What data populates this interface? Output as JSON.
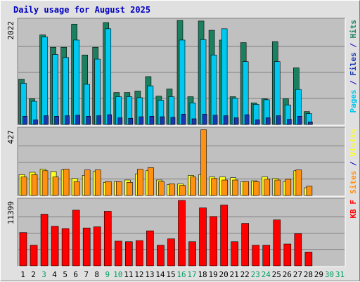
{
  "chart_data": {
    "type": "bar",
    "title": "Daily usage for August 2025",
    "categories": [
      "1",
      "2",
      "3",
      "4",
      "5",
      "6",
      "7",
      "8",
      "9",
      "10",
      "11",
      "12",
      "13",
      "14",
      "15",
      "16",
      "17",
      "18",
      "19",
      "20",
      "21",
      "22",
      "23",
      "24",
      "25",
      "26",
      "27",
      "28",
      "29",
      "30",
      "31"
    ],
    "weekend_days": [
      "3",
      "9",
      "10",
      "16",
      "17",
      "23",
      "24",
      "30",
      "31"
    ],
    "colors": {
      "weekday_label": "#000000",
      "weekend_label": "#00a060",
      "hits": "#1a8060",
      "files": "#00c8f0",
      "pages": "#1838b0",
      "visits": "#ffff20",
      "sites": "#ff9010",
      "kbytes": "#ff0000",
      "title": "#0000c0",
      "plot_bg": "#c0c0c0",
      "grid": "#808080"
    },
    "panels": [
      {
        "name": "hits-files-pages",
        "ymax_label": "2022",
        "ylim": [
          0,
          2022
        ],
        "side_label": [
          "Pages",
          " / ",
          "Files",
          " / ",
          "Hits"
        ],
        "side_colors": [
          "#00c8f0",
          "#0000c0",
          "#1838b0",
          "#0000c0",
          "#1a8060"
        ],
        "series": [
          {
            "name": "Hits",
            "values": [
              880,
              500,
              1740,
              1500,
              1500,
              1950,
              1350,
              1500,
              1980,
              620,
              620,
              650,
              930,
              550,
              690,
              2022,
              540,
              2010,
              1830,
              1640,
              540,
              1590,
              420,
              500,
              1610,
              500,
              1100,
              250,
              0,
              0,
              0
            ]
          },
          {
            "name": "Files",
            "values": [
              800,
              450,
              1700,
              1360,
              1300,
              1640,
              780,
              1270,
              1860,
              540,
              540,
              520,
              750,
              470,
              540,
              1640,
              420,
              1650,
              1350,
              1860,
              510,
              1220,
              390,
              480,
              1220,
              380,
              680,
              210,
              0,
              0,
              0
            ]
          },
          {
            "name": "Pages",
            "values": [
              160,
              90,
              170,
              160,
              170,
              180,
              160,
              170,
              190,
              130,
              120,
              150,
              160,
              150,
              140,
              200,
              110,
              200,
              180,
              170,
              130,
              190,
              90,
              130,
              170,
              100,
              160,
              50,
              0,
              0,
              0
            ]
          }
        ]
      },
      {
        "name": "visits-sites",
        "ymax_label": "427",
        "ylim": [
          0,
          427
        ],
        "side_label": [
          "Sites",
          " / ",
          "Visits"
        ],
        "side_colors": [
          "#ff9010",
          "#0000c0",
          "#ffff20"
        ],
        "series": [
          {
            "name": "Visits",
            "values": [
              135,
              150,
              170,
              155,
              165,
              110,
              130,
              155,
              85,
              90,
              100,
              140,
              160,
              100,
              70,
              75,
              130,
              135,
              120,
              120,
              115,
              90,
              95,
              120,
              110,
              90,
              160,
              50,
              0,
              0,
              0
            ]
          },
          {
            "name": "Sites",
            "values": [
              120,
              135,
              160,
              120,
              170,
              90,
              165,
              165,
              90,
              90,
              85,
              170,
              180,
              90,
              75,
              65,
              120,
              425,
              110,
              100,
              100,
              90,
              90,
              105,
              100,
              105,
              165,
              60,
              0,
              0,
              0
            ]
          }
        ]
      },
      {
        "name": "kbytes",
        "ymax_label": "11399",
        "ylim": [
          0,
          11399
        ],
        "side_label": [
          "KB F"
        ],
        "side_colors": [
          "#ff0000"
        ],
        "series": [
          {
            "name": "KBytes",
            "values": [
              5800,
              3600,
              9000,
              6900,
              6500,
              9700,
              6600,
              6800,
              9500,
              4300,
              4200,
              4400,
              6100,
              3600,
              4700,
              11399,
              4200,
              10100,
              8600,
              10600,
              4200,
              7400,
              3600,
              3600,
              8000,
              3800,
              5600,
              2400,
              0,
              0,
              0
            ]
          }
        ]
      }
    ]
  }
}
